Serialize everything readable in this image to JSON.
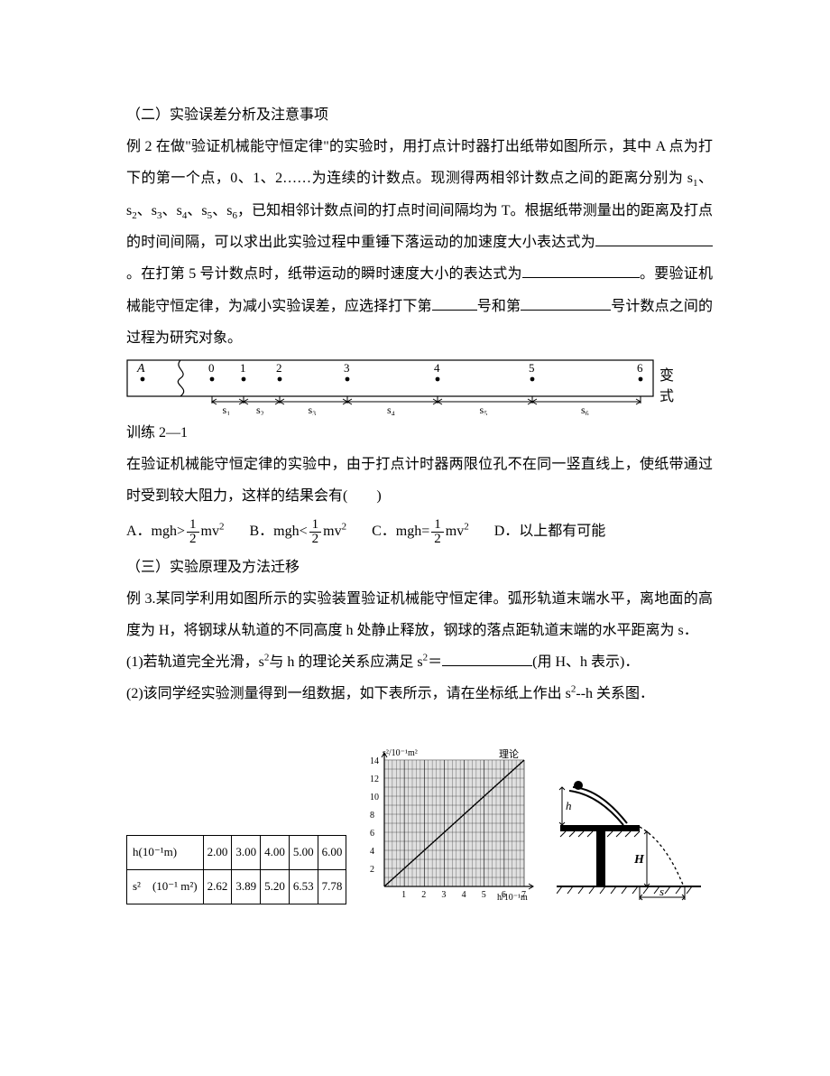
{
  "section2": {
    "heading": "（二）实验误差分析及注意事项",
    "example_label": "例 2",
    "para": "在做\"验证机械能守恒定律\"的实验时，用打点计时器打出纸带如图所示，其中 A 点为打下的第一个点，0、1、2……为连续的计数点。现测得两相邻计数点之间的距离分别为 s",
    "seg_subs": [
      "1",
      "2",
      "3",
      "4",
      "5",
      "6"
    ],
    "para2": "，已知相邻计数点间的打点时间间隔均为 T。根据纸带测量出的距离及打点的时间间隔，可以求出此实验过程中重锤下落运动的加速度大小表达式为",
    "after_blank1": "。在打第 5 号计数点时，纸带运动的瞬时速度大小的表达式为",
    "after_blank2": "。要验证机械能守恒定律，为减小实验误差，应选择打下第",
    "after_blank3": "号和第",
    "after_blank4": "号计数点之间的过程为研究对象。"
  },
  "tape": {
    "A_label": "A",
    "ticks": [
      "0",
      "1",
      "2",
      "3",
      "4",
      "5",
      "6"
    ],
    "segs": [
      "s₁",
      "s₂",
      "s₃",
      "s₄",
      "s₅",
      "s₆"
    ],
    "side_top": "变",
    "side_bot": "式"
  },
  "train": {
    "label": "训练 2—1",
    "para": "在验证机械能守恒定律的实验中，由于打点计时器两限位孔不在同一竖直线上，使纸带通过时受到较大阻力，这样的结果会有(　　)",
    "opts": {
      "A_prefix": "A．mgh>",
      "B_prefix": "B．mgh<",
      "C_prefix": "C．mgh=",
      "frac_num": "1",
      "frac_den": "2",
      "mv2": "mv",
      "sq": "2",
      "D": "D．以上都有可能"
    }
  },
  "section3": {
    "heading": "（三）实验原理及方法迁移",
    "ex3_label": "例 3.",
    "p1": "某同学利用如图所示的实验装置验证机械能守恒定律。弧形轨道末端水平，离地面的高度为 H，将钢球从轨道的不同高度 h 处静止释放，钢球的落点距轨道末端的水平距离为 s．",
    "q1_pre": "(1)若轨道完全光滑，s",
    "q1_sup": "2",
    "q1_mid": "与 h 的理论关系应满足 s",
    "q1_sup2": "2",
    "q1_eq": "＝",
    "q1_tail": "(用 H、h 表示)．",
    "q2_pre": "(2)该同学经实验测量得到一组数据，如下表所示，请在坐标纸上作出 s",
    "q2_sup": "2",
    "q2_tail": "--h 关系图．"
  },
  "table": {
    "row1_head": "h(10⁻¹m)",
    "row1": [
      "2.00",
      "3.00",
      "4.00",
      "5.00",
      "6.00"
    ],
    "row2_head": "s²　(10⁻¹ m²)",
    "row2": [
      "2.62",
      "3.89",
      "5.20",
      "6.53",
      "7.78"
    ]
  },
  "chart": {
    "ylabel": "s²/10⁻¹m²",
    "xlabel": "h/10⁻¹m",
    "legend": "理论",
    "ymax": 14,
    "xmax": 7,
    "yticks": [
      2,
      4,
      6,
      8,
      10,
      12,
      14
    ],
    "xticks": [
      1,
      2,
      3,
      4,
      5,
      6,
      7
    ],
    "line": {
      "x1": 0,
      "y1": 0,
      "x2": 7,
      "y2": 14
    },
    "grid_color": "#000",
    "bg": "#ffffff"
  },
  "apparatus": {
    "H": "H",
    "h": "h",
    "s": "s"
  }
}
